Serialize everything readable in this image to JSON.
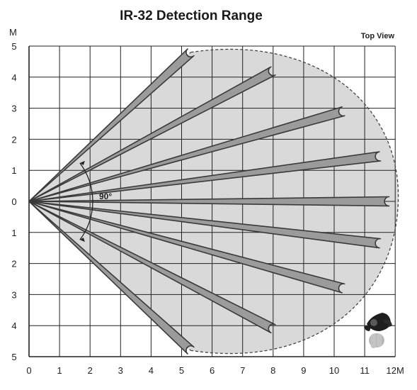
{
  "title": "IR-32 Detection Range",
  "view_label": "Top View",
  "angle_label": "90°",
  "x_axis": {
    "ticks": [
      0,
      1,
      2,
      3,
      4,
      5,
      6,
      7,
      8,
      9,
      10,
      11
    ],
    "tick_labels": [
      "0",
      "1",
      "2",
      "3",
      "4",
      "5",
      "6",
      "7",
      "8",
      "9",
      "10",
      "11"
    ],
    "end_label": "12M"
  },
  "y_axis": {
    "unit_label": "M",
    "ticks": [
      5,
      4,
      3,
      2,
      1,
      0,
      -1,
      -2,
      -3,
      -4,
      -5
    ],
    "tick_labels": [
      "5",
      "4",
      "3",
      "2",
      "1",
      "0",
      "1",
      "2",
      "3",
      "4",
      "5"
    ]
  },
  "detection_zone": {
    "origin": [
      0,
      0
    ],
    "field_of_view_deg": 90,
    "max_range_m": 12
  },
  "beams": [
    {
      "end": [
        5.3,
        4.8
      ]
    },
    {
      "end": [
        8.0,
        4.2
      ]
    },
    {
      "end": [
        10.3,
        2.9
      ]
    },
    {
      "end": [
        11.5,
        1.45
      ]
    },
    {
      "end": [
        11.8,
        0.0
      ]
    },
    {
      "end": [
        11.5,
        -1.35
      ]
    },
    {
      "end": [
        10.3,
        -2.8
      ]
    },
    {
      "end": [
        8.0,
        -4.1
      ]
    },
    {
      "end": [
        5.3,
        -4.8
      ]
    }
  ],
  "colors": {
    "grid": "#222222",
    "zone_fill": "#d9d9d9",
    "beam_fill": "#9b9b9b",
    "beam_stroke": "#3a3a3a"
  },
  "icons": {
    "person": "person-walking-icon"
  }
}
